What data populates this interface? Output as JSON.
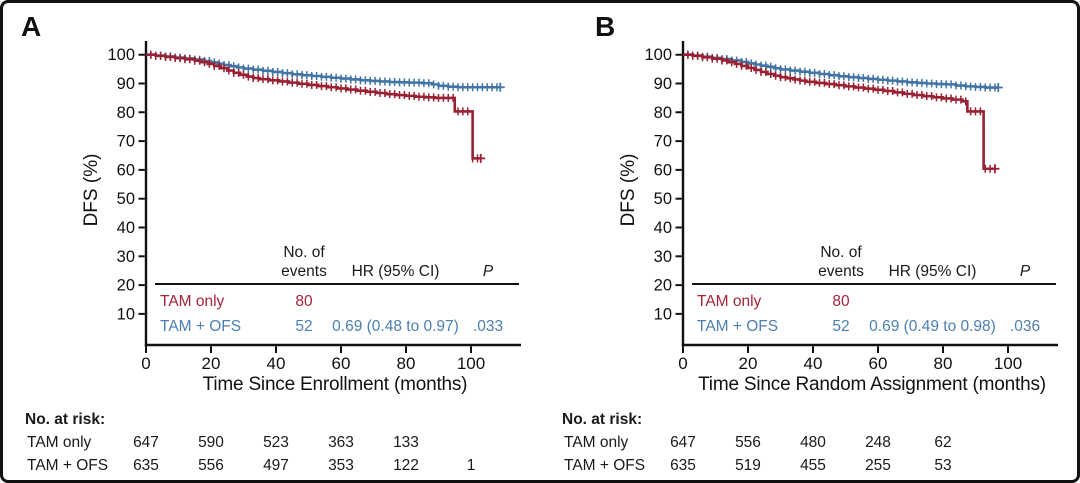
{
  "figure": {
    "description": "Two-panel Kaplan-Meier disease-free survival figure comparing TAM only vs TAM + OFS",
    "background": "#ffffff",
    "border_color": "#111111"
  },
  "colors": {
    "tam_only_curve": "#9A2033",
    "tam_ofs_curve": "#4274A5",
    "tam_only_text": "#A42439",
    "tam_ofs_text": "#4C7FB2",
    "axis": "#111111",
    "text": "#1a1a1a"
  },
  "panels": [
    {
      "letter": "A",
      "y_axis_title": "DFS (%)",
      "x_axis_title": "Time Since Enrollment (months)",
      "stats_table": {
        "header_events_line1": "No. of",
        "header_events_line2": "events",
        "header_hr": "HR (95% CI)",
        "header_p": "P",
        "rows": [
          {
            "name": "TAM only",
            "events": "80",
            "hr": "",
            "p": ""
          },
          {
            "name": "TAM + OFS",
            "events": "52",
            "hr": "0.69 (0.48 to 0.97)",
            "p": ".033"
          }
        ]
      },
      "at_risk": {
        "title": "No. at risk:",
        "rows": [
          {
            "name": "TAM only",
            "counts": [
              "647",
              "590",
              "523",
              "363",
              "133",
              ""
            ]
          },
          {
            "name": "TAM + OFS",
            "counts": [
              "635",
              "556",
              "497",
              "353",
              "122",
              "1"
            ]
          }
        ]
      }
    },
    {
      "letter": "B",
      "y_axis_title": "DFS (%)",
      "x_axis_title": "Time Since Random Assignment (months)",
      "stats_table": {
        "header_events_line1": "No. of",
        "header_events_line2": "events",
        "header_hr": "HR (95% CI)",
        "header_p": "P",
        "rows": [
          {
            "name": "TAM only",
            "events": "80",
            "hr": "",
            "p": ""
          },
          {
            "name": "TAM + OFS",
            "events": "52",
            "hr": "0.69 (0.49 to 0.98)",
            "p": ".036"
          }
        ]
      },
      "at_risk": {
        "title": "No. at risk:",
        "rows": [
          {
            "name": "TAM only",
            "counts": [
              "647",
              "556",
              "480",
              "248",
              "62",
              ""
            ]
          },
          {
            "name": "TAM + OFS",
            "counts": [
              "635",
              "519",
              "455",
              "255",
              "53",
              ""
            ]
          }
        ]
      }
    }
  ],
  "chart_data": [
    {
      "type": "line",
      "subtype": "kaplan-meier-step",
      "title": "A",
      "xlabel": "Time Since Enrollment (months)",
      "ylabel": "DFS (%)",
      "xlim": [
        0,
        113
      ],
      "ylim": [
        0,
        100
      ],
      "x_ticks": [
        0,
        20,
        40,
        60,
        80,
        100
      ],
      "y_ticks": [
        100,
        90,
        80,
        70,
        60,
        50,
        40,
        30,
        20,
        10
      ],
      "grid": false,
      "legend_position": "none",
      "series": [
        {
          "name": "TAM only",
          "color": "#9A2033",
          "end_month": 103,
          "points": [
            [
              0,
              100
            ],
            [
              3,
              99.6
            ],
            [
              6,
              99.2
            ],
            [
              9,
              98.8
            ],
            [
              12,
              98.4
            ],
            [
              15,
              97.9
            ],
            [
              17,
              97.4
            ],
            [
              19,
              96.8
            ],
            [
              21,
              96.1
            ],
            [
              23,
              95.3
            ],
            [
              25,
              94.5
            ],
            [
              27,
              93.7
            ],
            [
              29,
              93
            ],
            [
              31,
              92.4
            ],
            [
              33,
              91.9
            ],
            [
              35,
              91.5
            ],
            [
              38,
              91.1
            ],
            [
              41,
              90.7
            ],
            [
              44,
              90.3
            ],
            [
              47,
              89.9
            ],
            [
              50,
              89.5
            ],
            [
              53,
              89.1
            ],
            [
              56,
              88.7
            ],
            [
              59,
              88.3
            ],
            [
              62,
              87.9
            ],
            [
              65,
              87.5
            ],
            [
              68,
              87.1
            ],
            [
              71,
              86.7
            ],
            [
              74,
              86.3
            ],
            [
              77,
              86
            ],
            [
              80,
              85.7
            ],
            [
              83,
              85.4
            ],
            [
              86,
              85.2
            ],
            [
              89,
              85
            ],
            [
              95,
              80.3
            ],
            [
              100.5,
              64
            ]
          ]
        },
        {
          "name": "TAM + OFS",
          "color": "#4274A5",
          "end_month": 109,
          "points": [
            [
              0,
              100
            ],
            [
              3,
              99.7
            ],
            [
              6,
              99.4
            ],
            [
              9,
              99
            ],
            [
              12,
              98.7
            ],
            [
              15,
              98.3
            ],
            [
              18,
              97.8
            ],
            [
              20,
              97.3
            ],
            [
              22,
              96.9
            ],
            [
              24,
              96.4
            ],
            [
              26,
              96
            ],
            [
              28,
              95.6
            ],
            [
              30,
              95.2
            ],
            [
              33,
              94.8
            ],
            [
              36,
              94.4
            ],
            [
              39,
              94
            ],
            [
              42,
              93.6
            ],
            [
              45,
              93.2
            ],
            [
              48,
              92.9
            ],
            [
              51,
              92.6
            ],
            [
              54,
              92.3
            ],
            [
              57,
              92
            ],
            [
              60,
              91.7
            ],
            [
              63,
              91.4
            ],
            [
              66,
              91.1
            ],
            [
              69,
              90.9
            ],
            [
              72,
              90.7
            ],
            [
              75,
              90.5
            ],
            [
              78,
              90.4
            ],
            [
              81,
              90.3
            ],
            [
              85,
              90.1
            ],
            [
              88,
              89.7
            ],
            [
              90,
              89.2
            ],
            [
              93,
              88.9
            ],
            [
              96,
              88.7
            ]
          ]
        }
      ]
    },
    {
      "type": "line",
      "subtype": "kaplan-meier-step",
      "title": "B",
      "xlabel": "Time Since Random Assignment (months)",
      "ylabel": "DFS (%)",
      "xlim": [
        0,
        113
      ],
      "ylim": [
        0,
        100
      ],
      "x_ticks": [
        0,
        20,
        40,
        60,
        80,
        100
      ],
      "y_ticks": [
        100,
        90,
        80,
        70,
        60,
        50,
        40,
        30,
        20,
        10
      ],
      "grid": false,
      "legend_position": "none",
      "series": [
        {
          "name": "TAM only",
          "color": "#9A2033",
          "end_month": 96,
          "points": [
            [
              0,
              100
            ],
            [
              3,
              99.6
            ],
            [
              6,
              99.1
            ],
            [
              9,
              98.6
            ],
            [
              12,
              98
            ],
            [
              14,
              97.4
            ],
            [
              16,
              96.8
            ],
            [
              18,
              96.1
            ],
            [
              20,
              95.4
            ],
            [
              22,
              94.7
            ],
            [
              24,
              94
            ],
            [
              26,
              93.3
            ],
            [
              28,
              92.7
            ],
            [
              30,
              92.2
            ],
            [
              32,
              91.8
            ],
            [
              34,
              91.4
            ],
            [
              36,
              91
            ],
            [
              38,
              90.6
            ],
            [
              41,
              90.2
            ],
            [
              44,
              89.8
            ],
            [
              47,
              89.4
            ],
            [
              50,
              89
            ],
            [
              53,
              88.6
            ],
            [
              56,
              88.2
            ],
            [
              59,
              87.8
            ],
            [
              62,
              87.4
            ],
            [
              65,
              86.9
            ],
            [
              68,
              86.4
            ],
            [
              71,
              86
            ],
            [
              74,
              85.6
            ],
            [
              77,
              85.2
            ],
            [
              80,
              84.8
            ],
            [
              83,
              84.4
            ],
            [
              86,
              83.8
            ],
            [
              87.5,
              80.3
            ],
            [
              92.5,
              60.4
            ]
          ]
        },
        {
          "name": "TAM + OFS",
          "color": "#4274A5",
          "end_month": 97,
          "points": [
            [
              0,
              100
            ],
            [
              3,
              99.7
            ],
            [
              6,
              99.3
            ],
            [
              9,
              98.9
            ],
            [
              12,
              98.5
            ],
            [
              15,
              98
            ],
            [
              18,
              97.5
            ],
            [
              20,
              97
            ],
            [
              22,
              96.6
            ],
            [
              24,
              96.2
            ],
            [
              26,
              95.8
            ],
            [
              28,
              95.3
            ],
            [
              30,
              94.9
            ],
            [
              33,
              94.5
            ],
            [
              36,
              94.1
            ],
            [
              39,
              93.7
            ],
            [
              42,
              93.3
            ],
            [
              45,
              92.9
            ],
            [
              48,
              92.5
            ],
            [
              51,
              92.2
            ],
            [
              54,
              91.9
            ],
            [
              57,
              91.6
            ],
            [
              60,
              91.3
            ],
            [
              63,
              91
            ],
            [
              66,
              90.7
            ],
            [
              69,
              90.4
            ],
            [
              72,
              90.2
            ],
            [
              75,
              90
            ],
            [
              78,
              89.8
            ],
            [
              81,
              89.7
            ],
            [
              84,
              89.3
            ],
            [
              87,
              89
            ],
            [
              90,
              88.8
            ],
            [
              93,
              88.6
            ]
          ]
        }
      ]
    }
  ]
}
